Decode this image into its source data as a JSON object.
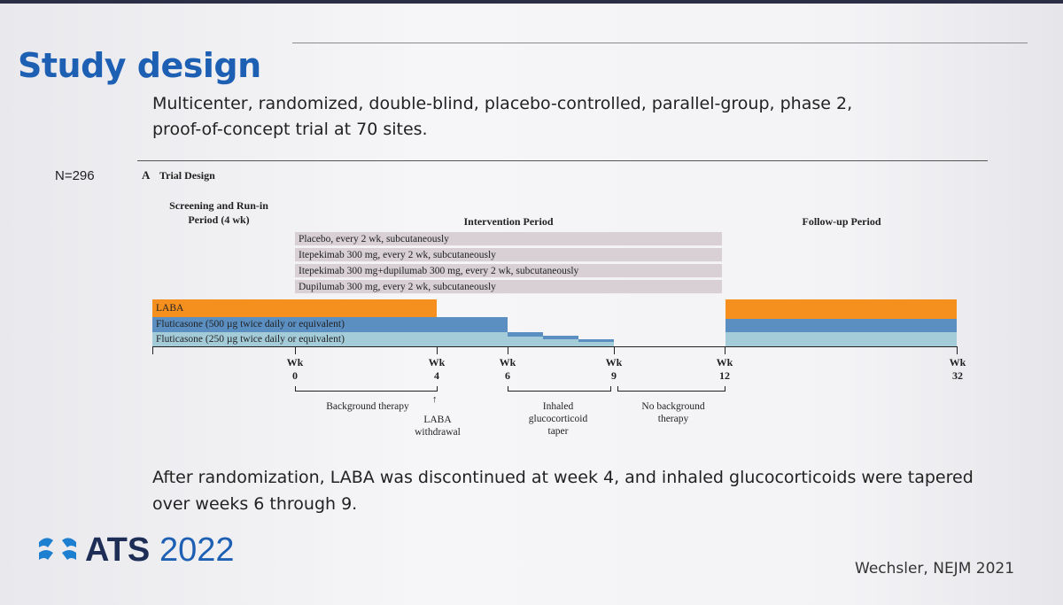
{
  "slide": {
    "title": "Study design",
    "subtitle_lines": [
      "Multicenter, randomized, double-blind, placebo-controlled, parallel-group, phase 2,",
      "proof-of-concept trial at 70 sites."
    ],
    "n_label": "N=296",
    "footer_lines": [
      "After randomization, LABA was discontinued at week 4, and inhaled glucocorticoids were tapered",
      "over weeks 6 through 9."
    ],
    "logo_ats": "ATS",
    "logo_year": "2022",
    "citation": "Wechsler, NEJM 2021"
  },
  "diagram": {
    "panel_letter": "A",
    "panel_title": "Trial Design",
    "periods": {
      "screening": [
        "Screening and Run-in",
        "Period (4 wk)"
      ],
      "intervention": "Intervention Period",
      "followup": "Follow-up Period"
    },
    "arms": [
      "Placebo, every 2 wk, subcutaneously",
      "Itepekimab 300 mg, every 2 wk, subcutaneously",
      "Itepekimab 300 mg+dupilumab 300 mg, every 2 wk, subcutaneously",
      "Dupilumab 300 mg, every 2 wk, subcutaneously"
    ],
    "background": {
      "laba": "LABA",
      "flut500": "Fluticasone (500 µg twice daily or equivalent)",
      "flut250": "Fluticasone (250 µg twice daily or equivalent)"
    },
    "weeks": [
      {
        "wk": "Wk",
        "n": "0"
      },
      {
        "wk": "Wk",
        "n": "4"
      },
      {
        "wk": "Wk",
        "n": "6"
      },
      {
        "wk": "Wk",
        "n": "9"
      },
      {
        "wk": "Wk",
        "n": "12"
      },
      {
        "wk": "Wk",
        "n": "32"
      }
    ],
    "annotations": {
      "background_therapy": "Background therapy",
      "laba_withdrawal": [
        "LABA",
        "withdrawal"
      ],
      "ics_taper": [
        "Inhaled",
        "glucocorticoid",
        "taper"
      ],
      "no_background": [
        "No background",
        "therapy"
      ]
    },
    "colors": {
      "laba": "#f5901e",
      "flut500": "#5b8fc2",
      "flut250": "#a3cbd8",
      "arm": "#d8d0d4",
      "title": "#1d5fb3"
    }
  }
}
